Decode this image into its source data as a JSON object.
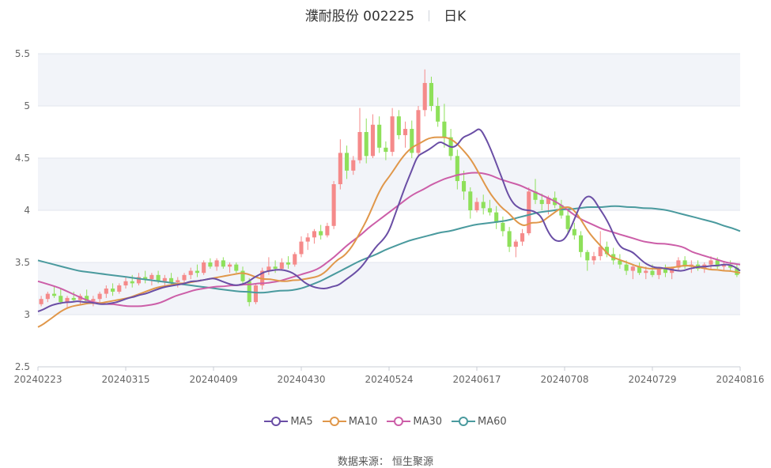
{
  "header": {
    "stock": "濮耐股份 002225",
    "period": "日K"
  },
  "source": "数据来源： 恒生聚源",
  "colors": {
    "up": "#f58a8a",
    "down": "#8ee05a",
    "ma5": "#6a4ea5",
    "ma10": "#e0974a",
    "ma30": "#cc5ea8",
    "ma60": "#4a9a9e",
    "plotBand": "#f2f4f9",
    "grid": "#e2e6ee"
  },
  "chart_data": {
    "type": "candlestick",
    "title": "濮耐股份 002225",
    "ylim": [
      2.5,
      5.5
    ],
    "yticks": [
      "2.5",
      "3",
      "3.5",
      "4",
      "4.5",
      "5",
      "5.5"
    ],
    "xticks": [
      "20240223",
      "20240315",
      "20240409",
      "20240430",
      "20240524",
      "20240617",
      "20240708",
      "20240729",
      "20240816"
    ],
    "legend": [
      "MA5",
      "MA10",
      "MA30",
      "MA60"
    ],
    "candles_ohlc": [
      [
        3.1,
        3.18,
        3.08,
        3.15
      ],
      [
        3.15,
        3.22,
        3.12,
        3.2
      ],
      [
        3.2,
        3.28,
        3.16,
        3.18
      ],
      [
        3.18,
        3.25,
        3.1,
        3.12
      ],
      [
        3.12,
        3.18,
        3.06,
        3.16
      ],
      [
        3.16,
        3.22,
        3.12,
        3.14
      ],
      [
        3.14,
        3.2,
        3.1,
        3.18
      ],
      [
        3.18,
        3.24,
        3.14,
        3.13
      ],
      [
        3.13,
        3.18,
        3.08,
        3.15
      ],
      [
        3.15,
        3.22,
        3.12,
        3.2
      ],
      [
        3.2,
        3.28,
        3.16,
        3.25
      ],
      [
        3.25,
        3.3,
        3.18,
        3.22
      ],
      [
        3.22,
        3.3,
        3.2,
        3.28
      ],
      [
        3.28,
        3.36,
        3.25,
        3.32
      ],
      [
        3.32,
        3.38,
        3.26,
        3.3
      ],
      [
        3.3,
        3.4,
        3.28,
        3.36
      ],
      [
        3.36,
        3.42,
        3.3,
        3.34
      ],
      [
        3.34,
        3.4,
        3.28,
        3.38
      ],
      [
        3.38,
        3.42,
        3.3,
        3.32
      ],
      [
        3.32,
        3.38,
        3.26,
        3.35
      ],
      [
        3.35,
        3.4,
        3.28,
        3.31
      ],
      [
        3.31,
        3.36,
        3.26,
        3.33
      ],
      [
        3.33,
        3.4,
        3.3,
        3.38
      ],
      [
        3.38,
        3.45,
        3.34,
        3.42
      ],
      [
        3.42,
        3.48,
        3.36,
        3.4
      ],
      [
        3.4,
        3.52,
        3.38,
        3.5
      ],
      [
        3.5,
        3.54,
        3.44,
        3.46
      ],
      [
        3.46,
        3.54,
        3.42,
        3.52
      ],
      [
        3.52,
        3.55,
        3.44,
        3.46
      ],
      [
        3.46,
        3.5,
        3.4,
        3.48
      ],
      [
        3.48,
        3.5,
        3.4,
        3.42
      ],
      [
        3.42,
        3.46,
        3.3,
        3.32
      ],
      [
        3.32,
        3.35,
        3.08,
        3.12
      ],
      [
        3.12,
        3.3,
        3.1,
        3.28
      ],
      [
        3.28,
        3.45,
        3.24,
        3.42
      ],
      [
        3.42,
        3.55,
        3.38,
        3.46
      ],
      [
        3.46,
        3.52,
        3.4,
        3.44
      ],
      [
        3.44,
        3.54,
        3.42,
        3.5
      ],
      [
        3.5,
        3.56,
        3.44,
        3.48
      ],
      [
        3.48,
        3.6,
        3.46,
        3.58
      ],
      [
        3.58,
        3.75,
        3.55,
        3.7
      ],
      [
        3.7,
        3.78,
        3.62,
        3.74
      ],
      [
        3.74,
        3.82,
        3.68,
        3.8
      ],
      [
        3.8,
        3.86,
        3.72,
        3.76
      ],
      [
        3.76,
        3.88,
        3.74,
        3.85
      ],
      [
        3.85,
        4.28,
        3.82,
        4.25
      ],
      [
        4.25,
        4.68,
        4.2,
        4.55
      ],
      [
        4.55,
        4.62,
        4.3,
        4.38
      ],
      [
        4.38,
        4.52,
        4.34,
        4.48
      ],
      [
        4.48,
        4.98,
        4.45,
        4.75
      ],
      [
        4.75,
        4.88,
        4.45,
        4.52
      ],
      [
        4.52,
        4.92,
        4.5,
        4.82
      ],
      [
        4.82,
        4.9,
        4.55,
        4.6
      ],
      [
        4.6,
        4.66,
        4.48,
        4.56
      ],
      [
        4.56,
        4.98,
        4.52,
        4.9
      ],
      [
        4.9,
        4.96,
        4.68,
        4.72
      ],
      [
        4.72,
        4.85,
        4.6,
        4.78
      ],
      [
        4.78,
        4.86,
        4.5,
        4.55
      ],
      [
        4.55,
        5.0,
        4.52,
        4.96
      ],
      [
        4.96,
        5.35,
        4.9,
        5.22
      ],
      [
        5.22,
        5.28,
        4.95,
        5.0
      ],
      [
        5.0,
        5.08,
        4.8,
        4.85
      ],
      [
        4.85,
        5.02,
        4.6,
        4.7
      ],
      [
        4.7,
        4.78,
        4.48,
        4.52
      ],
      [
        4.52,
        4.58,
        4.2,
        4.28
      ],
      [
        4.28,
        4.38,
        4.1,
        4.18
      ],
      [
        4.18,
        4.22,
        3.92,
        4.0
      ],
      [
        4.0,
        4.12,
        3.98,
        4.08
      ],
      [
        4.08,
        4.15,
        3.96,
        4.02
      ],
      [
        4.02,
        4.1,
        3.95,
        3.98
      ],
      [
        3.98,
        4.04,
        3.82,
        3.88
      ],
      [
        3.88,
        3.94,
        3.75,
        3.8
      ],
      [
        3.8,
        3.84,
        3.6,
        3.65
      ],
      [
        3.65,
        3.72,
        3.55,
        3.7
      ],
      [
        3.7,
        3.82,
        3.66,
        3.78
      ],
      [
        3.78,
        4.22,
        3.76,
        4.18
      ],
      [
        4.18,
        4.3,
        4.06,
        4.1
      ],
      [
        4.1,
        4.16,
        4.0,
        4.06
      ],
      [
        4.06,
        4.14,
        3.96,
        4.12
      ],
      [
        4.12,
        4.18,
        4.02,
        4.05
      ],
      [
        4.05,
        4.1,
        3.92,
        3.95
      ],
      [
        3.95,
        4.0,
        3.78,
        3.82
      ],
      [
        3.82,
        3.88,
        3.72,
        3.76
      ],
      [
        3.76,
        3.8,
        3.55,
        3.6
      ],
      [
        3.6,
        3.62,
        3.42,
        3.52
      ],
      [
        3.52,
        3.6,
        3.48,
        3.56
      ],
      [
        3.56,
        3.8,
        3.52,
        3.65
      ],
      [
        3.65,
        3.7,
        3.55,
        3.58
      ],
      [
        3.58,
        3.64,
        3.48,
        3.52
      ],
      [
        3.52,
        3.58,
        3.44,
        3.48
      ],
      [
        3.48,
        3.52,
        3.38,
        3.42
      ],
      [
        3.42,
        3.48,
        3.34,
        3.46
      ],
      [
        3.46,
        3.5,
        3.38,
        3.4
      ],
      [
        3.4,
        3.46,
        3.34,
        3.42
      ],
      [
        3.42,
        3.48,
        3.36,
        3.38
      ],
      [
        3.38,
        3.46,
        3.34,
        3.44
      ],
      [
        3.44,
        3.48,
        3.36,
        3.4
      ],
      [
        3.4,
        3.46,
        3.34,
        3.45
      ],
      [
        3.45,
        3.55,
        3.42,
        3.52
      ],
      [
        3.52,
        3.56,
        3.44,
        3.46
      ],
      [
        3.46,
        3.52,
        3.4,
        3.48
      ],
      [
        3.48,
        3.52,
        3.42,
        3.44
      ],
      [
        3.44,
        3.5,
        3.4,
        3.48
      ],
      [
        3.48,
        3.56,
        3.44,
        3.52
      ],
      [
        3.52,
        3.55,
        3.44,
        3.46
      ],
      [
        3.46,
        3.5,
        3.42,
        3.48
      ],
      [
        3.48,
        3.52,
        3.42,
        3.45
      ],
      [
        3.45,
        3.48,
        3.36,
        3.38
      ]
    ],
    "series": [
      {
        "name": "MA5",
        "values": [
          3.03,
          3.05,
          3.08,
          3.1,
          3.11,
          3.12,
          3.12,
          3.13,
          3.12,
          3.12,
          3.11,
          3.1,
          3.1,
          3.11,
          3.12,
          3.14,
          3.16,
          3.17,
          3.19,
          3.2,
          3.22,
          3.24,
          3.26,
          3.27,
          3.28,
          3.29,
          3.3,
          3.32,
          3.32,
          3.33,
          3.34,
          3.35,
          3.33,
          3.31,
          3.29,
          3.28,
          3.29,
          3.31,
          3.35,
          3.38,
          3.41,
          3.42,
          3.43,
          3.43,
          3.42,
          3.4,
          3.36,
          3.31,
          3.28,
          3.26,
          3.25,
          3.25,
          3.27,
          3.28,
          3.32,
          3.36,
          3.4,
          3.45,
          3.52,
          3.6,
          3.67,
          3.72,
          3.8,
          3.95,
          4.1,
          4.25,
          4.38,
          4.52,
          4.55,
          4.58,
          4.62,
          4.66,
          4.63,
          4.6,
          4.62,
          4.7,
          4.72,
          4.75,
          4.79,
          4.7,
          4.58,
          4.44,
          4.3,
          4.15,
          4.06,
          4.02,
          4.0,
          4.0,
          3.98,
          3.93,
          3.8,
          3.72,
          3.7,
          3.72,
          3.82,
          3.95,
          4.08,
          4.14,
          4.12,
          4.03,
          3.95,
          3.85,
          3.72,
          3.64,
          3.62,
          3.6,
          3.55,
          3.5,
          3.47,
          3.45,
          3.45,
          3.44,
          3.43,
          3.42,
          3.42,
          3.44,
          3.45,
          3.46,
          3.46,
          3.47,
          3.47,
          3.48,
          3.48,
          3.46,
          3.42
        ]
      },
      {
        "name": "MA10",
        "values": [
          2.88,
          2.91,
          2.95,
          2.99,
          3.03,
          3.06,
          3.08,
          3.09,
          3.1,
          3.11,
          3.11,
          3.11,
          3.12,
          3.13,
          3.14,
          3.15,
          3.16,
          3.18,
          3.2,
          3.22,
          3.24,
          3.26,
          3.27,
          3.28,
          3.29,
          3.3,
          3.3,
          3.31,
          3.32,
          3.33,
          3.34,
          3.35,
          3.36,
          3.37,
          3.38,
          3.39,
          3.4,
          3.39,
          3.37,
          3.35,
          3.34,
          3.34,
          3.33,
          3.32,
          3.32,
          3.33,
          3.33,
          3.34,
          3.35,
          3.36,
          3.38,
          3.42,
          3.48,
          3.53,
          3.56,
          3.62,
          3.7,
          3.8,
          3.9,
          4.02,
          4.15,
          4.25,
          4.32,
          4.4,
          4.48,
          4.55,
          4.6,
          4.63,
          4.66,
          4.69,
          4.7,
          4.7,
          4.7,
          4.68,
          4.64,
          4.58,
          4.52,
          4.44,
          4.34,
          4.24,
          4.15,
          4.08,
          4.02,
          3.98,
          3.92,
          3.87,
          3.85,
          3.88,
          3.88,
          3.89,
          3.93,
          3.97,
          4.01,
          4.03,
          4.03,
          3.98,
          3.9,
          3.81,
          3.74,
          3.68,
          3.62,
          3.56,
          3.54,
          3.52,
          3.5,
          3.48,
          3.46,
          3.45,
          3.44,
          3.44,
          3.44,
          3.45,
          3.45,
          3.46,
          3.47,
          3.47,
          3.46,
          3.45,
          3.44,
          3.43,
          3.43,
          3.42,
          3.42,
          3.41,
          3.4
        ]
      },
      {
        "name": "MA30",
        "values": [
          3.32,
          3.3,
          3.28,
          3.26,
          3.23,
          3.2,
          3.17,
          3.14,
          3.12,
          3.11,
          3.1,
          3.1,
          3.09,
          3.08,
          3.08,
          3.08,
          3.09,
          3.1,
          3.12,
          3.15,
          3.18,
          3.2,
          3.22,
          3.24,
          3.25,
          3.26,
          3.27,
          3.27,
          3.28,
          3.28,
          3.29,
          3.29,
          3.3,
          3.3,
          3.31,
          3.32,
          3.34,
          3.36,
          3.38,
          3.4,
          3.42,
          3.45,
          3.5,
          3.55,
          3.61,
          3.67,
          3.72,
          3.77,
          3.83,
          3.88,
          3.93,
          3.98,
          4.03,
          4.08,
          4.13,
          4.17,
          4.2,
          4.24,
          4.27,
          4.3,
          4.32,
          4.34,
          4.35,
          4.36,
          4.36,
          4.35,
          4.33,
          4.3,
          4.28,
          4.26,
          4.24,
          4.21,
          4.18,
          4.15,
          4.12,
          4.09,
          4.05,
          4.0,
          3.95,
          3.91,
          3.88,
          3.85,
          3.82,
          3.8,
          3.78,
          3.76,
          3.74,
          3.72,
          3.7,
          3.69,
          3.68,
          3.68,
          3.67,
          3.66,
          3.64,
          3.6,
          3.58,
          3.56,
          3.54,
          3.52,
          3.5,
          3.49,
          3.48
        ]
      },
      {
        "name": "MA60",
        "values": [
          3.52,
          3.5,
          3.48,
          3.46,
          3.44,
          3.42,
          3.41,
          3.4,
          3.39,
          3.38,
          3.37,
          3.36,
          3.35,
          3.34,
          3.33,
          3.32,
          3.31,
          3.3,
          3.29,
          3.28,
          3.27,
          3.26,
          3.25,
          3.24,
          3.23,
          3.22,
          3.22,
          3.21,
          3.21,
          3.22,
          3.23,
          3.23,
          3.24,
          3.26,
          3.29,
          3.32,
          3.36,
          3.4,
          3.44,
          3.48,
          3.52,
          3.55,
          3.58,
          3.62,
          3.65,
          3.68,
          3.71,
          3.73,
          3.75,
          3.77,
          3.79,
          3.8,
          3.82,
          3.84,
          3.86,
          3.87,
          3.88,
          3.89,
          3.9,
          3.92,
          3.94,
          3.96,
          3.98,
          3.99,
          4.0,
          4.01,
          4.01,
          4.02,
          4.03,
          4.03,
          4.03,
          4.04,
          4.04,
          4.03,
          4.03,
          4.02,
          4.02,
          4.01,
          4.0,
          3.98,
          3.96,
          3.94,
          3.92,
          3.9,
          3.88,
          3.85,
          3.83,
          3.8
        ]
      }
    ]
  }
}
